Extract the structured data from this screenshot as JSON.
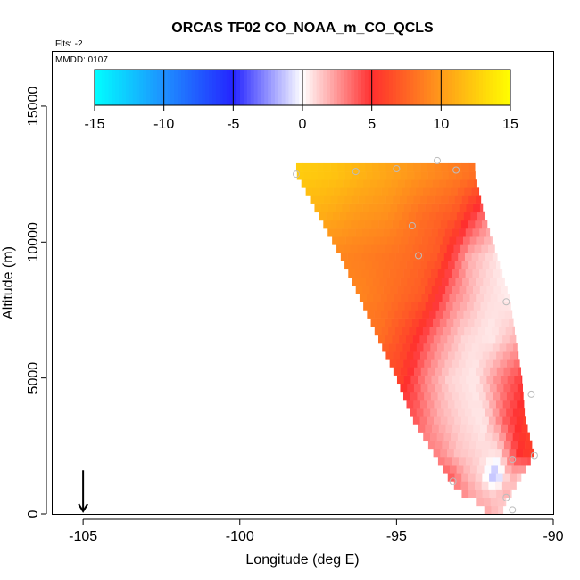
{
  "chart_data": {
    "type": "heatmap",
    "title": "ORCAS TF02 CO_NOAA_m_CO_QCLS",
    "annotations": {
      "flights": "Flts: -2",
      "date": "MMDD: 0107"
    },
    "xlabel": "Longitude (deg E)",
    "ylabel": "Altitude (m)",
    "xlim": [
      -106,
      -90
    ],
    "ylim": [
      0,
      17000
    ],
    "x_ticks": [
      -105,
      -100,
      -95,
      -90
    ],
    "y_ticks": [
      0,
      5000,
      10000,
      15000
    ],
    "x_tick_labels": [
      "-105",
      "-100",
      "-95",
      "-90"
    ],
    "y_tick_labels": [
      "0",
      "5000",
      "10000",
      "15000"
    ],
    "grid": false,
    "colorbar": {
      "range": [
        -15,
        15
      ],
      "ticks": [
        -15,
        -10,
        -5,
        0,
        5,
        10,
        15
      ],
      "tick_labels": [
        "-15",
        "-10",
        "-5",
        "0",
        "5",
        "10",
        "15"
      ],
      "colors": [
        "#00ffff",
        "#1e90ff",
        "#2424ff",
        "#ffffff",
        "#ff2e2e",
        "#ff9a1a",
        "#ffff00"
      ],
      "placement": "top"
    },
    "arrow_marker": {
      "x": -105,
      "y": 600,
      "direction": "down"
    },
    "observation_points": [
      {
        "x": -98.2,
        "y": 12500
      },
      {
        "x": -96.3,
        "y": 12600
      },
      {
        "x": -95.0,
        "y": 12700
      },
      {
        "x": -93.7,
        "y": 13000
      },
      {
        "x": -93.1,
        "y": 12650
      },
      {
        "x": -94.5,
        "y": 10600
      },
      {
        "x": -94.3,
        "y": 9500
      },
      {
        "x": -91.5,
        "y": 7800
      },
      {
        "x": -91.3,
        "y": 2000
      },
      {
        "x": -90.7,
        "y": 4400
      },
      {
        "x": -90.6,
        "y": 2150
      },
      {
        "x": -93.2,
        "y": 1200
      },
      {
        "x": -91.5,
        "y": 600
      },
      {
        "x": -91.3,
        "y": 150
      }
    ],
    "anomaly_field": {
      "description": "field of CO anomaly (ppb) between a slanted western edge and eastern edge",
      "rows": [
        {
          "y": 12500,
          "x_start": -98.2,
          "x_end": -92.5,
          "values": [
            12.5,
            12,
            11,
            10,
            9,
            8
          ]
        },
        {
          "y": 11000,
          "x_start": -97.5,
          "x_end": -92.2,
          "values": [
            11,
            10,
            9.5,
            8,
            7,
            3
          ]
        },
        {
          "y": 9500,
          "x_start": -96.8,
          "x_end": -91.8,
          "values": [
            9,
            8.5,
            8,
            7,
            2,
            0.5
          ]
        },
        {
          "y": 8000,
          "x_start": -96.2,
          "x_end": -91.4,
          "values": [
            9,
            8,
            7,
            3,
            1,
            0.3
          ]
        },
        {
          "y": 6500,
          "x_start": -95.6,
          "x_end": -91.2,
          "values": [
            8,
            6,
            3,
            1,
            0.5,
            2
          ]
        },
        {
          "y": 5000,
          "x_start": -95.0,
          "x_end": -91.0,
          "values": [
            6,
            3,
            1,
            0.5,
            3,
            5
          ]
        },
        {
          "y": 3500,
          "x_start": -94.5,
          "x_end": -90.9,
          "values": [
            4,
            2,
            1,
            0.5,
            4,
            6
          ]
        },
        {
          "y": 2200,
          "x_start": -93.8,
          "x_end": -90.6,
          "values": [
            3,
            1.5,
            1,
            0.5,
            5,
            6
          ]
        },
        {
          "y": 1400,
          "x_start": -93.4,
          "x_end": -91.0,
          "values": [
            4,
            2,
            1,
            -2,
            2,
            1
          ]
        },
        {
          "y": 800,
          "x_start": -93.0,
          "x_end": -91.3,
          "values": [
            3,
            2,
            1.5,
            1,
            2,
            1
          ]
        },
        {
          "y": 300,
          "x_start": -92.2,
          "x_end": -91.6,
          "values": [
            2,
            1.5,
            1
          ]
        }
      ]
    }
  }
}
